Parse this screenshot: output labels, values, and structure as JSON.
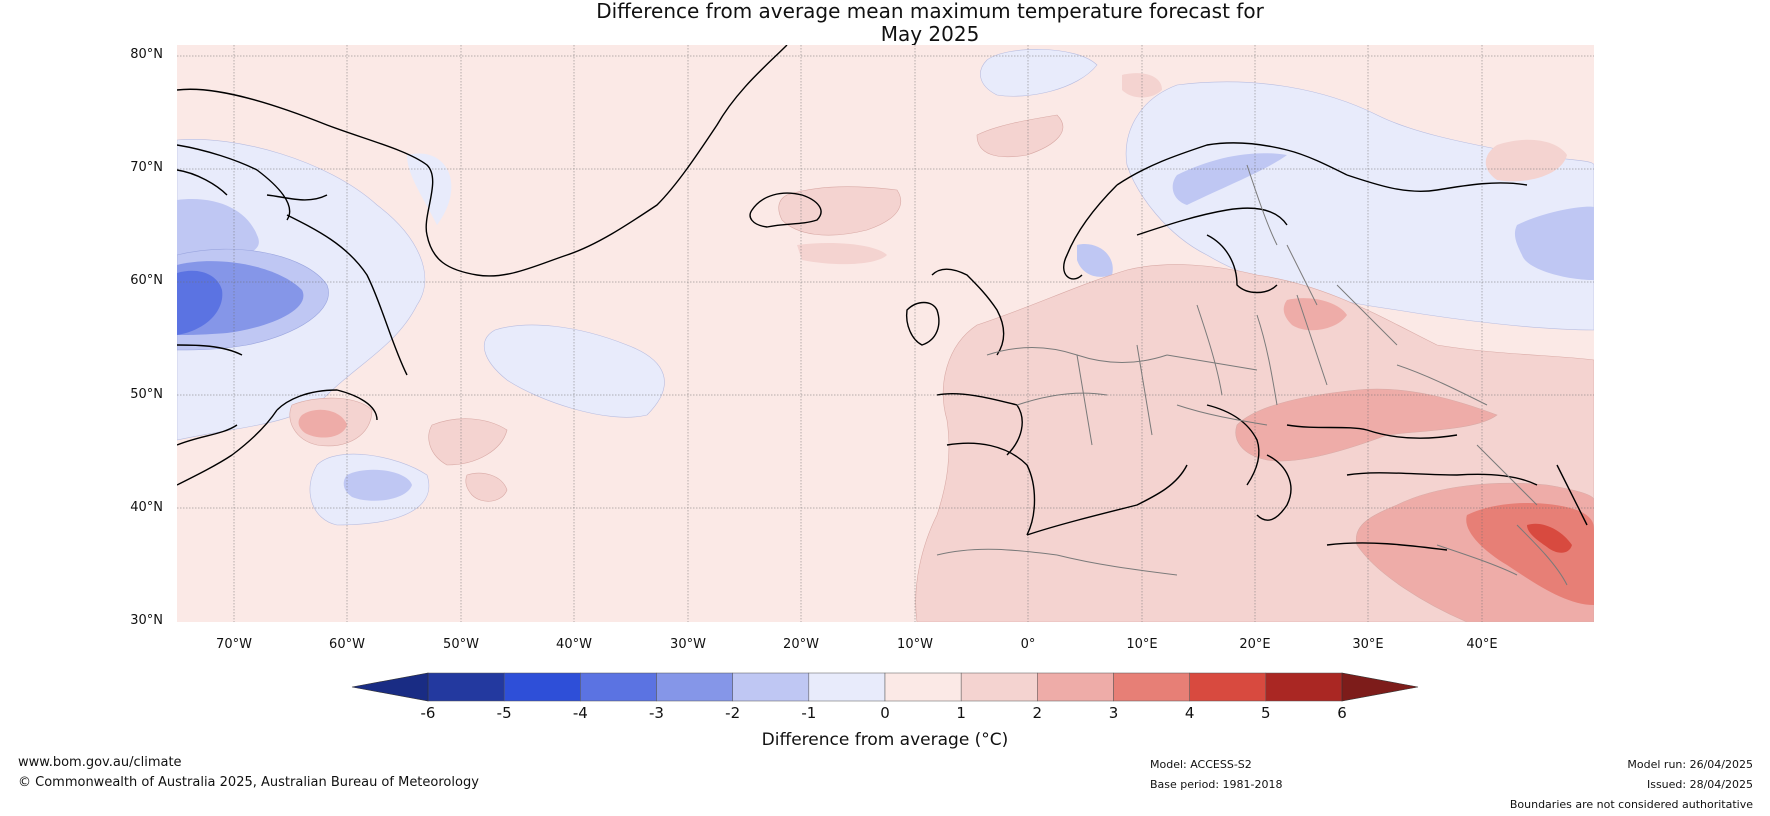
{
  "title_line1": "Difference from average mean maximum temperature forecast for",
  "title_line2": "May 2025",
  "latitude_labels": [
    "80°N",
    "70°N",
    "60°N",
    "50°N",
    "40°N",
    "30°N"
  ],
  "longitude_labels": [
    "70°W",
    "60°W",
    "50°W",
    "40°W",
    "30°W",
    "20°W",
    "10°W",
    "0°",
    "10°E",
    "20°E",
    "30°E",
    "40°E"
  ],
  "colorbar": {
    "ticks": [
      "-6",
      "-5",
      "-4",
      "-3",
      "-2",
      "-1",
      "0",
      "1",
      "2",
      "3",
      "4",
      "5",
      "6"
    ],
    "colors": [
      "#23399f",
      "#2e4fd8",
      "#5b73e2",
      "#8596e8",
      "#bfc7f3",
      "#e8ebfb",
      "#fbe9e6",
      "#f4d3d0",
      "#eeaca8",
      "#e77f76",
      "#d84a3f",
      "#aa2723"
    ],
    "under_color": "#192c84",
    "over_color": "#7d1c1a",
    "label": "Difference from average (°C)"
  },
  "footer": {
    "website": "www.bom.gov.au/climate",
    "copyright": "© Commonwealth of Australia 2025, Australian Bureau of Meteorology",
    "model": "Model: ACCESS-S2",
    "base_period": "Base period: 1981-2018",
    "model_run": "Model run: 26/04/2025",
    "issued": "Issued: 28/04/2025",
    "disclaimer": "Boundaries are not considered authoritative"
  }
}
